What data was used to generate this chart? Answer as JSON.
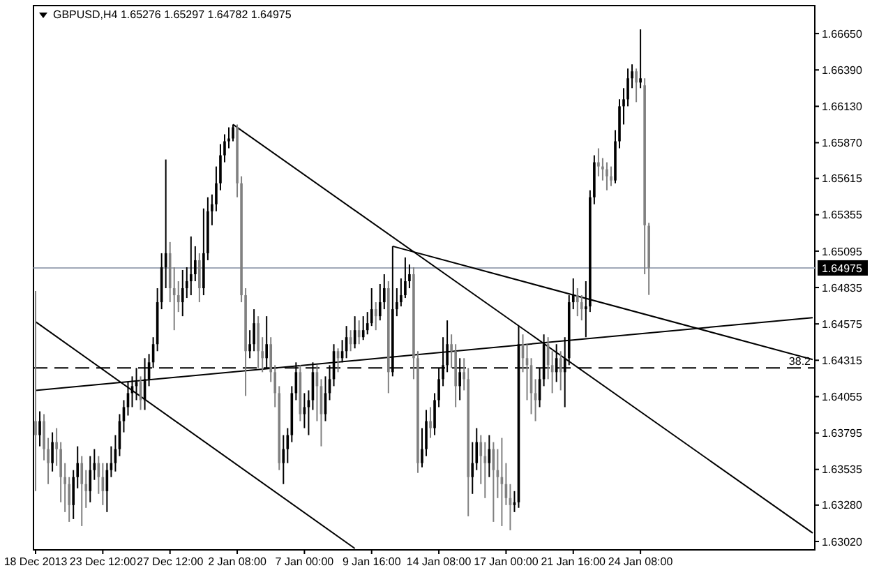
{
  "chart_data": {
    "type": "candlestick",
    "title": "GBPUSD,H4  1.65276 1.65297 1.64782 1.64975",
    "categories": [
      "18 Dec 2013",
      null,
      null,
      null,
      null,
      null,
      null,
      null,
      null,
      null,
      null,
      null,
      null,
      null,
      null,
      null,
      "23 Dec 12:00",
      null,
      null,
      null,
      null,
      null,
      null,
      null,
      null,
      null,
      null,
      null,
      null,
      null,
      null,
      null,
      "27 Dec 12:00",
      null,
      null,
      null,
      null,
      null,
      null,
      null,
      null,
      null,
      null,
      null,
      null,
      null,
      null,
      null,
      "2 Jan 08:00",
      null,
      null,
      null,
      null,
      null,
      null,
      null,
      null,
      null,
      null,
      null,
      null,
      null,
      null,
      null,
      "7 Jan 00:00",
      null,
      null,
      null,
      null,
      null,
      null,
      null,
      null,
      null,
      null,
      null,
      null,
      null,
      null,
      null,
      "9 Jan 16:00",
      null,
      null,
      null,
      null,
      null,
      null,
      null,
      null,
      null,
      null,
      null,
      null,
      null,
      null,
      null,
      "14 Jan 08:00",
      null,
      null,
      null,
      null,
      null,
      null,
      null,
      null,
      null,
      null,
      null,
      null,
      null,
      null,
      null,
      "17 Jan 00:00",
      null,
      null,
      null,
      null,
      null,
      null,
      null,
      null,
      null,
      null,
      null,
      null,
      null,
      null,
      null,
      "21 Jan 16:00",
      null,
      null,
      null,
      null,
      null,
      null,
      null,
      null,
      null,
      null,
      null,
      null,
      null,
      null,
      null,
      "24 Jan 08:00",
      null,
      null,
      null,
      null,
      null,
      null,
      null,
      null,
      null,
      null,
      null,
      null,
      null,
      null,
      null,
      null,
      null,
      null,
      null,
      null,
      null,
      null,
      null,
      null,
      null,
      null,
      null,
      null,
      null,
      null,
      null,
      null,
      null,
      null,
      null,
      null,
      null,
      null,
      null,
      null,
      null
    ],
    "ohlc": [
      [
        1.6388,
        1.6481,
        1.6338,
        1.6378
      ],
      [
        1.6378,
        1.6395,
        1.637,
        1.6388
      ],
      [
        1.6388,
        1.6393,
        1.636,
        1.6368
      ],
      [
        1.6368,
        1.6376,
        1.6343,
        1.6358
      ],
      [
        1.6358,
        1.638,
        1.6352,
        1.6373
      ],
      [
        1.6373,
        1.6383,
        1.6356,
        1.6368
      ],
      [
        1.6368,
        1.6373,
        1.633,
        1.6348
      ],
      [
        1.6348,
        1.6358,
        1.6323,
        1.6343
      ],
      [
        1.6343,
        1.6348,
        1.6316,
        1.6328
      ],
      [
        1.6328,
        1.6353,
        1.6318,
        1.6348
      ],
      [
        1.6348,
        1.637,
        1.634,
        1.6358
      ],
      [
        1.6358,
        1.6363,
        1.6313,
        1.6343
      ],
      [
        1.6343,
        1.6353,
        1.6326,
        1.6338
      ],
      [
        1.6338,
        1.6363,
        1.633,
        1.6353
      ],
      [
        1.6353,
        1.6368,
        1.6346,
        1.6358
      ],
      [
        1.6358,
        1.6363,
        1.6336,
        1.6348
      ],
      [
        1.6348,
        1.6358,
        1.6328,
        1.6338
      ],
      [
        1.6338,
        1.6358,
        1.6323,
        1.6353
      ],
      [
        1.6353,
        1.637,
        1.6348,
        1.6358
      ],
      [
        1.6358,
        1.6378,
        1.6352,
        1.6368
      ],
      [
        1.6368,
        1.6393,
        1.6363,
        1.6388
      ],
      [
        1.6388,
        1.6403,
        1.638,
        1.6398
      ],
      [
        1.6398,
        1.6416,
        1.6392,
        1.6408
      ],
      [
        1.6408,
        1.642,
        1.6398,
        1.6413
      ],
      [
        1.6413,
        1.6426,
        1.6403,
        1.6416
      ],
      [
        1.6416,
        1.642,
        1.6396,
        1.6403
      ],
      [
        1.6403,
        1.6433,
        1.6396,
        1.6418
      ],
      [
        1.6418,
        1.6436,
        1.6413,
        1.643
      ],
      [
        1.643,
        1.6448,
        1.6426,
        1.6443
      ],
      [
        1.6443,
        1.6483,
        1.6438,
        1.6473
      ],
      [
        1.6473,
        1.6508,
        1.6468,
        1.6498
      ],
      [
        1.6498,
        1.6575,
        1.6483,
        1.6508
      ],
      [
        1.6508,
        1.6516,
        1.6473,
        1.6483
      ],
      [
        1.6483,
        1.6498,
        1.6453,
        1.6478
      ],
      [
        1.6478,
        1.6488,
        1.6466,
        1.6473
      ],
      [
        1.6473,
        1.6496,
        1.6463,
        1.6483
      ],
      [
        1.6483,
        1.6498,
        1.6476,
        1.6488
      ],
      [
        1.6488,
        1.652,
        1.6478,
        1.6493
      ],
      [
        1.6493,
        1.6513,
        1.6488,
        1.6503
      ],
      [
        1.6503,
        1.6508,
        1.6473,
        1.6483
      ],
      [
        1.6483,
        1.654,
        1.6478,
        1.6508
      ],
      [
        1.6508,
        1.6548,
        1.6503,
        1.6538
      ],
      [
        1.6538,
        1.655,
        1.6528,
        1.6543
      ],
      [
        1.6543,
        1.657,
        1.6538,
        1.6558
      ],
      [
        1.6558,
        1.6586,
        1.6553,
        1.6578
      ],
      [
        1.6578,
        1.6593,
        1.6573,
        1.6588
      ],
      [
        1.6588,
        1.6598,
        1.6583,
        1.659
      ],
      [
        1.659,
        1.66,
        1.6588,
        1.6598
      ],
      [
        1.6598,
        1.66,
        1.6548,
        1.6558
      ],
      [
        1.6558,
        1.6563,
        1.6473,
        1.6478
      ],
      [
        1.6478,
        1.6483,
        1.6406,
        1.6438
      ],
      [
        1.6438,
        1.6453,
        1.6433,
        1.6443
      ],
      [
        1.6443,
        1.6468,
        1.6438,
        1.6458
      ],
      [
        1.6458,
        1.6463,
        1.6426,
        1.6438
      ],
      [
        1.6438,
        1.6448,
        1.6423,
        1.6433
      ],
      [
        1.6433,
        1.6463,
        1.6426,
        1.6443
      ],
      [
        1.6443,
        1.6448,
        1.6416,
        1.6423
      ],
      [
        1.6423,
        1.6428,
        1.6398,
        1.6408
      ],
      [
        1.6408,
        1.6413,
        1.6353,
        1.6358
      ],
      [
        1.6358,
        1.6378,
        1.6343,
        1.6368
      ],
      [
        1.6368,
        1.6383,
        1.6358,
        1.6378
      ],
      [
        1.6378,
        1.6413,
        1.6373,
        1.6408
      ],
      [
        1.6408,
        1.643,
        1.6403,
        1.6423
      ],
      [
        1.6423,
        1.6428,
        1.6388,
        1.6393
      ],
      [
        1.6393,
        1.6408,
        1.6383,
        1.6398
      ],
      [
        1.6398,
        1.641,
        1.6378,
        1.6403
      ],
      [
        1.6403,
        1.643,
        1.6396,
        1.6423
      ],
      [
        1.6423,
        1.6428,
        1.6388,
        1.6413
      ],
      [
        1.6413,
        1.6418,
        1.637,
        1.6393
      ],
      [
        1.6393,
        1.642,
        1.6388,
        1.6408
      ],
      [
        1.6408,
        1.6428,
        1.6403,
        1.6418
      ],
      [
        1.6418,
        1.6443,
        1.6413,
        1.6438
      ],
      [
        1.6438,
        1.644,
        1.6423,
        1.6433
      ],
      [
        1.6433,
        1.6446,
        1.643,
        1.6438
      ],
      [
        1.6438,
        1.6456,
        1.6433,
        1.6448
      ],
      [
        1.6448,
        1.6453,
        1.6438,
        1.6443
      ],
      [
        1.6443,
        1.6463,
        1.644,
        1.6453
      ],
      [
        1.6453,
        1.646,
        1.6443,
        1.6448
      ],
      [
        1.6448,
        1.6463,
        1.6446,
        1.6453
      ],
      [
        1.6453,
        1.6466,
        1.645,
        1.6458
      ],
      [
        1.6458,
        1.6483,
        1.6456,
        1.6468
      ],
      [
        1.6468,
        1.6473,
        1.6453,
        1.6463
      ],
      [
        1.6463,
        1.6486,
        1.646,
        1.6473
      ],
      [
        1.6473,
        1.6493,
        1.6468,
        1.6483
      ],
      [
        1.6483,
        1.6488,
        1.6408,
        1.6423
      ],
      [
        1.6423,
        1.6513,
        1.642,
        1.6468
      ],
      [
        1.6468,
        1.6483,
        1.6463,
        1.6473
      ],
      [
        1.6473,
        1.649,
        1.647,
        1.6478
      ],
      [
        1.6478,
        1.6505,
        1.6476,
        1.6488
      ],
      [
        1.6488,
        1.65,
        1.6483,
        1.6493
      ],
      [
        1.6493,
        1.6498,
        1.6418,
        1.6433
      ],
      [
        1.6433,
        1.6438,
        1.6351,
        1.6358
      ],
      [
        1.6358,
        1.6383,
        1.6355,
        1.6368
      ],
      [
        1.6368,
        1.6396,
        1.6363,
        1.6388
      ],
      [
        1.6388,
        1.6398,
        1.6376,
        1.6383
      ],
      [
        1.6383,
        1.6408,
        1.6378,
        1.6403
      ],
      [
        1.6403,
        1.6426,
        1.6398,
        1.6418
      ],
      [
        1.6418,
        1.6448,
        1.6413,
        1.6428
      ],
      [
        1.6428,
        1.646,
        1.6423,
        1.6443
      ],
      [
        1.6443,
        1.645,
        1.6426,
        1.6438
      ],
      [
        1.6438,
        1.6443,
        1.6398,
        1.6413
      ],
      [
        1.6413,
        1.6433,
        1.6403,
        1.6423
      ],
      [
        1.6423,
        1.6433,
        1.641,
        1.6418
      ],
      [
        1.6418,
        1.6426,
        1.632,
        1.6348
      ],
      [
        1.6348,
        1.6373,
        1.6336,
        1.6358
      ],
      [
        1.6358,
        1.6383,
        1.6353,
        1.6373
      ],
      [
        1.6373,
        1.6378,
        1.6343,
        1.6363
      ],
      [
        1.6363,
        1.6373,
        1.6333,
        1.6358
      ],
      [
        1.6358,
        1.6378,
        1.6348,
        1.6368
      ],
      [
        1.6368,
        1.6373,
        1.6316,
        1.6353
      ],
      [
        1.6353,
        1.6368,
        1.6333,
        1.6348
      ],
      [
        1.6348,
        1.6376,
        1.6313,
        1.6343
      ],
      [
        1.6343,
        1.6358,
        1.6328,
        1.6333
      ],
      [
        1.6333,
        1.6343,
        1.631,
        1.6328
      ],
      [
        1.6328,
        1.6338,
        1.6323,
        1.633
      ],
      [
        1.633,
        1.6456,
        1.6326,
        1.6443
      ],
      [
        1.6443,
        1.645,
        1.6423,
        1.6433
      ],
      [
        1.6433,
        1.6443,
        1.6403,
        1.6428
      ],
      [
        1.6428,
        1.6433,
        1.6393,
        1.6408
      ],
      [
        1.6408,
        1.6418,
        1.6388,
        1.6403
      ],
      [
        1.6403,
        1.6426,
        1.6398,
        1.6418
      ],
      [
        1.6418,
        1.645,
        1.6413,
        1.6443
      ],
      [
        1.6443,
        1.6448,
        1.6418,
        1.6428
      ],
      [
        1.6428,
        1.6438,
        1.6408,
        1.6423
      ],
      [
        1.6423,
        1.6443,
        1.6416,
        1.6433
      ],
      [
        1.6433,
        1.6438,
        1.641,
        1.6423
      ],
      [
        1.6423,
        1.6448,
        1.6398,
        1.6433
      ],
      [
        1.6433,
        1.6478,
        1.6428,
        1.6473
      ],
      [
        1.6473,
        1.649,
        1.6468,
        1.6478
      ],
      [
        1.6478,
        1.6483,
        1.6463,
        1.6473
      ],
      [
        1.6473,
        1.6478,
        1.646,
        1.6468
      ],
      [
        1.6468,
        1.6488,
        1.6448,
        1.647
      ],
      [
        1.647,
        1.6553,
        1.6466,
        1.6548
      ],
      [
        1.6548,
        1.6578,
        1.6543,
        1.6573
      ],
      [
        1.6573,
        1.6583,
        1.6563,
        1.657
      ],
      [
        1.657,
        1.6576,
        1.656,
        1.6568
      ],
      [
        1.6568,
        1.6573,
        1.6553,
        1.6563
      ],
      [
        1.6563,
        1.657,
        1.6556,
        1.656
      ],
      [
        1.656,
        1.6596,
        1.6558,
        1.6588
      ],
      [
        1.6588,
        1.6618,
        1.6583,
        1.6613
      ],
      [
        1.6613,
        1.6626,
        1.66,
        1.6618
      ],
      [
        1.6618,
        1.664,
        1.6613,
        1.6633
      ],
      [
        1.6633,
        1.6643,
        1.6626,
        1.6638
      ],
      [
        1.6638,
        1.664,
        1.6616,
        1.663
      ],
      [
        1.663,
        1.6668,
        1.6626,
        1.6633
      ],
      [
        1.6628,
        1.6633,
        1.6493,
        1.6528
      ],
      [
        1.65276,
        1.65297,
        1.64782,
        1.64975
      ],
      null,
      null,
      null,
      null,
      null,
      null,
      null,
      null,
      null,
      null,
      null,
      null,
      null,
      null,
      null,
      null,
      null,
      null,
      null,
      null,
      null,
      null,
      null,
      null,
      null,
      null,
      null,
      null,
      null,
      null,
      null,
      null,
      null,
      null,
      null,
      null,
      null,
      null,
      null
    ],
    "series": [
      {
        "type": "line",
        "color": "#000000",
        "values": [
          1.6459,
          null,
          null,
          null,
          null,
          null,
          null,
          null,
          null,
          null,
          null,
          null,
          null,
          null,
          null,
          null,
          null,
          null,
          null,
          null,
          null,
          null,
          null,
          null,
          null,
          null,
          null,
          null,
          null,
          null,
          null,
          null,
          null,
          null,
          null,
          null,
          null,
          null,
          null,
          null,
          null,
          null,
          null,
          null,
          null,
          null,
          null,
          null,
          null,
          null,
          null,
          null,
          null,
          null,
          null,
          null,
          null,
          null,
          null,
          null,
          null,
          null,
          null,
          null,
          null,
          null,
          null,
          null,
          null,
          null,
          null,
          null,
          null,
          null,
          null,
          null,
          1.6297,
          null,
          null,
          null,
          null,
          null,
          null,
          null,
          null,
          null,
          null,
          null,
          null,
          null,
          null,
          null,
          null,
          null,
          null,
          null,
          null,
          null,
          null,
          null,
          null,
          null,
          null,
          null,
          null,
          null,
          null,
          null,
          null,
          null,
          null,
          null,
          null,
          null,
          null,
          null,
          null,
          null,
          null,
          null,
          null,
          null,
          null,
          null,
          null,
          null,
          null,
          null,
          null,
          null,
          null,
          null,
          null,
          null,
          null,
          null,
          null,
          null,
          null,
          null,
          null,
          null,
          null,
          null,
          null,
          null,
          null,
          null,
          null,
          null,
          null,
          null,
          null,
          null,
          null,
          null,
          null,
          null,
          null,
          null,
          null,
          null,
          null,
          null,
          null,
          null,
          null,
          null,
          null,
          null,
          null,
          null,
          null,
          null,
          null,
          null,
          null,
          null,
          null,
          null,
          null,
          null,
          null,
          null,
          null,
          null
        ]
      },
      {
        "type": "line",
        "color": "#000000",
        "values": [
          null,
          null,
          null,
          null,
          null,
          null,
          null,
          null,
          null,
          null,
          null,
          null,
          null,
          null,
          null,
          null,
          null,
          null,
          null,
          null,
          null,
          null,
          null,
          null,
          null,
          null,
          null,
          null,
          null,
          null,
          null,
          null,
          null,
          null,
          null,
          null,
          null,
          null,
          null,
          null,
          null,
          null,
          null,
          null,
          null,
          null,
          null,
          1.66,
          null,
          null,
          null,
          null,
          null,
          null,
          null,
          null,
          null,
          null,
          null,
          null,
          null,
          null,
          null,
          null,
          null,
          null,
          null,
          null,
          null,
          null,
          null,
          null,
          null,
          null,
          null,
          null,
          null,
          null,
          null,
          null,
          null,
          null,
          null,
          null,
          null,
          null,
          null,
          null,
          null,
          null,
          null,
          null,
          null,
          null,
          null,
          null,
          null,
          null,
          null,
          null,
          null,
          null,
          null,
          null,
          null,
          null,
          null,
          null,
          null,
          null,
          null,
          null,
          null,
          null,
          null,
          null,
          null,
          null,
          null,
          null,
          null,
          null,
          null,
          null,
          null,
          null,
          null,
          null,
          null,
          null,
          null,
          null,
          null,
          null,
          null,
          null,
          null,
          null,
          null,
          null,
          null,
          null,
          null,
          null,
          null,
          null,
          null,
          null,
          null,
          null,
          null,
          null,
          null,
          null,
          null,
          null,
          null,
          null,
          null,
          null,
          null,
          null,
          null,
          null,
          null,
          null,
          null,
          null,
          null,
          null,
          null,
          null,
          null,
          null,
          null,
          null,
          null,
          null,
          null,
          null,
          null,
          null,
          null,
          null,
          null,
          1.6308
        ]
      },
      {
        "type": "line",
        "color": "#000000",
        "values": [
          null,
          null,
          null,
          null,
          null,
          null,
          null,
          null,
          null,
          null,
          null,
          null,
          null,
          null,
          null,
          null,
          null,
          null,
          null,
          null,
          null,
          null,
          null,
          null,
          null,
          null,
          null,
          null,
          null,
          null,
          null,
          null,
          null,
          null,
          null,
          null,
          null,
          null,
          null,
          null,
          null,
          null,
          null,
          null,
          null,
          null,
          null,
          null,
          null,
          null,
          null,
          null,
          null,
          null,
          null,
          null,
          null,
          null,
          null,
          null,
          null,
          null,
          null,
          null,
          null,
          null,
          null,
          null,
          null,
          null,
          null,
          null,
          null,
          null,
          null,
          null,
          null,
          null,
          null,
          null,
          null,
          null,
          null,
          null,
          null,
          1.6513,
          null,
          null,
          null,
          null,
          null,
          null,
          null,
          null,
          null,
          null,
          null,
          null,
          null,
          null,
          null,
          null,
          null,
          null,
          null,
          null,
          null,
          null,
          null,
          null,
          null,
          null,
          null,
          null,
          null,
          null,
          null,
          null,
          null,
          null,
          null,
          null,
          null,
          null,
          null,
          null,
          null,
          null,
          null,
          null,
          null,
          null,
          null,
          null,
          null,
          null,
          null,
          null,
          null,
          null,
          null,
          null,
          null,
          null,
          null,
          null,
          null,
          null,
          null,
          null,
          null,
          null,
          null,
          null,
          null,
          null,
          null,
          null,
          null,
          null,
          null,
          null,
          null,
          null,
          null,
          null,
          null,
          null,
          null,
          null,
          null,
          null,
          null,
          null,
          null,
          null,
          null,
          null,
          null,
          null,
          null,
          null,
          null,
          null,
          null,
          1.6432
        ]
      },
      {
        "type": "line",
        "color": "#000000",
        "values": [
          1.641,
          null,
          null,
          null,
          null,
          null,
          null,
          null,
          null,
          null,
          null,
          null,
          null,
          null,
          null,
          null,
          null,
          null,
          null,
          null,
          null,
          null,
          null,
          null,
          null,
          null,
          null,
          null,
          null,
          null,
          null,
          null,
          null,
          null,
          null,
          null,
          null,
          null,
          null,
          null,
          null,
          null,
          null,
          null,
          null,
          null,
          null,
          null,
          null,
          null,
          null,
          null,
          null,
          null,
          null,
          null,
          null,
          null,
          null,
          null,
          null,
          null,
          null,
          null,
          null,
          null,
          null,
          null,
          null,
          null,
          null,
          null,
          null,
          null,
          null,
          null,
          null,
          null,
          null,
          null,
          null,
          null,
          null,
          null,
          null,
          null,
          null,
          null,
          null,
          null,
          null,
          null,
          null,
          null,
          null,
          null,
          null,
          null,
          null,
          null,
          null,
          null,
          null,
          null,
          null,
          null,
          null,
          null,
          null,
          null,
          null,
          null,
          null,
          null,
          null,
          null,
          null,
          null,
          null,
          null,
          null,
          null,
          null,
          null,
          null,
          null,
          null,
          null,
          null,
          null,
          null,
          null,
          null,
          null,
          null,
          null,
          null,
          null,
          null,
          null,
          null,
          null,
          null,
          null,
          null,
          null,
          null,
          null,
          null,
          null,
          null,
          null,
          null,
          null,
          null,
          null,
          null,
          null,
          null,
          null,
          null,
          null,
          null,
          null,
          null,
          null,
          null,
          null,
          null,
          null,
          null,
          null,
          null,
          null,
          null,
          null,
          null,
          null,
          null,
          null,
          null,
          null,
          null,
          null,
          null,
          1.6462
        ]
      }
    ],
    "ylim": [
      1.6296,
      1.6685
    ],
    "yticks": [
      {
        "value": 1.6302,
        "label": "1.63020"
      },
      {
        "value": 1.6328,
        "label": "1.63280"
      },
      {
        "value": 1.63535,
        "label": "1.63535"
      },
      {
        "value": 1.63795,
        "label": "1.63795"
      },
      {
        "value": 1.64055,
        "label": "1.64055"
      },
      {
        "value": 1.64315,
        "label": "1.64315"
      },
      {
        "value": 1.64575,
        "label": "1.64575"
      },
      {
        "value": 1.64835,
        "label": "1.64835"
      },
      {
        "value": 1.65095,
        "label": "1.65095"
      },
      {
        "value": 1.65355,
        "label": "1.65355"
      },
      {
        "value": 1.65615,
        "label": "1.65615"
      },
      {
        "value": 1.6587,
        "label": "1.65870"
      },
      {
        "value": 1.6613,
        "label": "1.66130"
      },
      {
        "value": 1.6639,
        "label": "1.66390"
      },
      {
        "value": 1.6665,
        "label": "1.66650"
      }
    ],
    "ref_lines": [
      {
        "axis": "y",
        "value": 1.64975,
        "label": "1.64975",
        "color": "#a0a8b8",
        "line_style": "solid"
      },
      {
        "axis": "y",
        "value": 1.6426,
        "color": "#000000",
        "line_style": "dashed"
      }
    ],
    "annotations": [
      {
        "text": "38.2",
        "y": 1.6426
      }
    ]
  }
}
